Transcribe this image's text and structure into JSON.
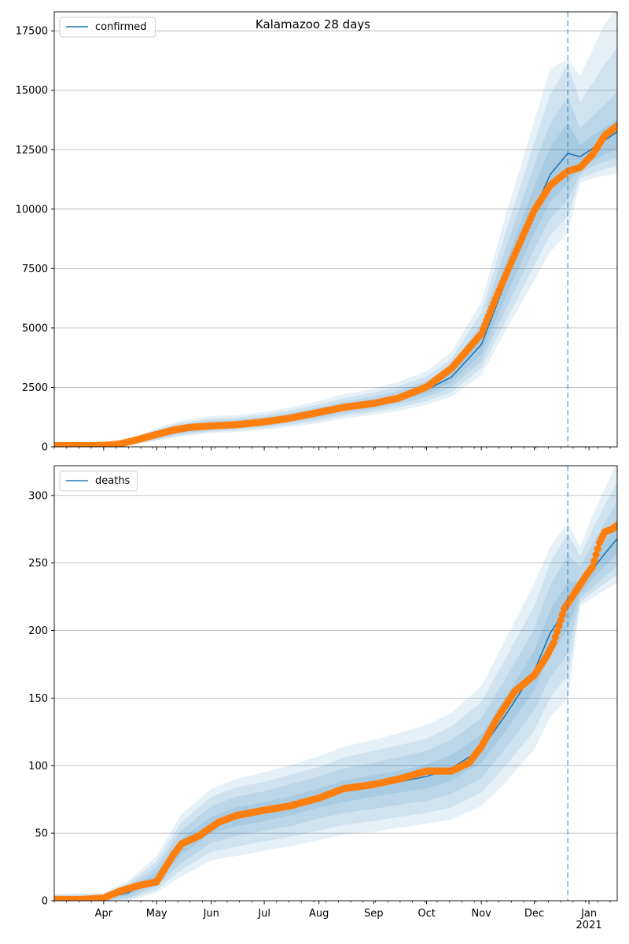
{
  "figure": {
    "title": "Kalamazoo 28 days"
  },
  "colors": {
    "model_line": "#1f77b4",
    "observed": "#ff7f0e",
    "band": "#1f77b4",
    "grid": "#b0b0b0",
    "cutoff": "#1f77b4"
  },
  "chart_data": [
    {
      "type": "line",
      "legend": "confirmed",
      "legend_position": "top-left",
      "grid": "y",
      "xaxis": {
        "type": "date",
        "range": [
          "2020-03-04",
          "2021-01-17"
        ],
        "ticks": [
          {
            "date": "2020-04-01",
            "label": "Apr"
          },
          {
            "date": "2020-05-01",
            "label": "May"
          },
          {
            "date": "2020-06-01",
            "label": "Jun"
          },
          {
            "date": "2020-07-01",
            "label": "Jul"
          },
          {
            "date": "2020-08-01",
            "label": "Aug"
          },
          {
            "date": "2020-09-01",
            "label": "Sep"
          },
          {
            "date": "2020-10-01",
            "label": "Oct"
          },
          {
            "date": "2020-11-01",
            "label": "Nov"
          },
          {
            "date": "2020-12-01",
            "label": "Dec"
          },
          {
            "date": "2021-01-01",
            "label": "Jan\n2021"
          }
        ],
        "show_labels": false
      },
      "ylim": [
        0,
        18300
      ],
      "yticks": [
        0,
        2500,
        5000,
        7500,
        10000,
        12500,
        15000,
        17500
      ],
      "cutoff_date": "2020-12-20",
      "model": {
        "x": [
          "2020-03-04",
          "2020-04-01",
          "2020-04-15",
          "2020-05-01",
          "2020-05-15",
          "2020-06-01",
          "2020-06-15",
          "2020-07-01",
          "2020-07-15",
          "2020-08-01",
          "2020-08-15",
          "2020-09-01",
          "2020-09-15",
          "2020-10-01",
          "2020-10-15",
          "2020-11-01",
          "2020-11-15",
          "2020-12-01",
          "2020-12-10",
          "2020-12-20",
          "2020-12-27",
          "2021-01-03",
          "2021-01-10",
          "2021-01-17"
        ],
        "mid": [
          50,
          60,
          150,
          480,
          720,
          880,
          940,
          1050,
          1200,
          1400,
          1630,
          1830,
          2050,
          2400,
          2930,
          4300,
          7000,
          9950,
          11450,
          12350,
          12200,
          12550,
          12900,
          13250
        ],
        "band_50": [
          [
            50,
            60
          ],
          [
            55,
            65
          ],
          [
            120,
            180
          ],
          [
            380,
            590
          ],
          [
            610,
            860
          ],
          [
            780,
            1000
          ],
          [
            840,
            1050
          ],
          [
            950,
            1160
          ],
          [
            1100,
            1300
          ],
          [
            1300,
            1530
          ],
          [
            1520,
            1760
          ],
          [
            1710,
            1970
          ],
          [
            1920,
            2200
          ],
          [
            2240,
            2580
          ],
          [
            2700,
            3190
          ],
          [
            3900,
            4750
          ],
          [
            6300,
            7750
          ],
          [
            9000,
            10950
          ],
          [
            10300,
            12600
          ],
          [
            11100,
            13650
          ],
          [
            11700,
            12700
          ],
          [
            12050,
            13100
          ],
          [
            12300,
            13450
          ],
          [
            12500,
            13800
          ]
        ],
        "band_80": [
          [
            45,
            65
          ],
          [
            50,
            70
          ],
          [
            100,
            210
          ],
          [
            330,
            660
          ],
          [
            550,
            940
          ],
          [
            700,
            1100
          ],
          [
            760,
            1140
          ],
          [
            870,
            1260
          ],
          [
            1010,
            1410
          ],
          [
            1200,
            1660
          ],
          [
            1400,
            1900
          ],
          [
            1590,
            2120
          ],
          [
            1790,
            2360
          ],
          [
            2090,
            2760
          ],
          [
            2500,
            3440
          ],
          [
            3600,
            5200
          ],
          [
            5800,
            8400
          ],
          [
            8300,
            11850
          ],
          [
            9600,
            13600
          ],
          [
            10400,
            14700
          ],
          [
            11500,
            13400
          ],
          [
            11800,
            13900
          ],
          [
            12000,
            14400
          ],
          [
            12150,
            14900
          ]
        ],
        "band_95": [
          [
            40,
            70
          ],
          [
            45,
            80
          ],
          [
            80,
            240
          ],
          [
            290,
            730
          ],
          [
            500,
            1020
          ],
          [
            640,
            1190
          ],
          [
            690,
            1230
          ],
          [
            790,
            1360
          ],
          [
            920,
            1520
          ],
          [
            1100,
            1790
          ],
          [
            1300,
            2050
          ],
          [
            1470,
            2280
          ],
          [
            1650,
            2540
          ],
          [
            1930,
            2960
          ],
          [
            2300,
            3700
          ],
          [
            3300,
            5650
          ],
          [
            5300,
            9100
          ],
          [
            7600,
            12800
          ],
          [
            8900,
            14800
          ],
          [
            9700,
            16100
          ],
          [
            11300,
            14500
          ],
          [
            11500,
            15300
          ],
          [
            11700,
            16100
          ],
          [
            11800,
            16800
          ]
        ],
        "band_99": [
          [
            35,
            80
          ],
          [
            40,
            90
          ],
          [
            60,
            270
          ],
          [
            250,
            800
          ],
          [
            440,
            1110
          ],
          [
            580,
            1290
          ],
          [
            620,
            1330
          ],
          [
            710,
            1470
          ],
          [
            830,
            1640
          ],
          [
            1000,
            1930
          ],
          [
            1190,
            2210
          ],
          [
            1350,
            2450
          ],
          [
            1510,
            2730
          ],
          [
            1770,
            3180
          ],
          [
            2100,
            3980
          ],
          [
            3000,
            6100
          ],
          [
            4900,
            9800
          ],
          [
            7000,
            13700
          ],
          [
            8200,
            15900
          ],
          [
            9000,
            16300
          ],
          [
            11100,
            15600
          ],
          [
            11300,
            16700
          ],
          [
            11400,
            17800
          ],
          [
            11500,
            18500
          ]
        ]
      },
      "observed": {
        "x": [
          "2020-03-04",
          "2020-03-20",
          "2020-04-01",
          "2020-04-10",
          "2020-04-20",
          "2020-05-01",
          "2020-05-10",
          "2020-05-20",
          "2020-06-01",
          "2020-06-15",
          "2020-07-01",
          "2020-07-15",
          "2020-08-01",
          "2020-08-15",
          "2020-09-01",
          "2020-09-15",
          "2020-10-01",
          "2020-10-15",
          "2020-11-01",
          "2020-11-10",
          "2020-11-20",
          "2020-12-01",
          "2020-12-10",
          "2020-12-20",
          "2020-12-27",
          "2021-01-03",
          "2021-01-10",
          "2021-01-17"
        ],
        "y": [
          50,
          50,
          60,
          120,
          300,
          520,
          700,
          820,
          880,
          930,
          1050,
          1200,
          1450,
          1660,
          1830,
          2050,
          2520,
          3300,
          4750,
          6400,
          8100,
          9950,
          11000,
          11600,
          11750,
          12300,
          13100,
          13500
        ]
      }
    },
    {
      "type": "line",
      "legend": "deaths",
      "legend_position": "top-left",
      "grid": "y",
      "xaxis": {
        "type": "date",
        "range": [
          "2020-03-04",
          "2021-01-17"
        ],
        "ticks": [
          {
            "date": "2020-04-01",
            "label": "Apr"
          },
          {
            "date": "2020-05-01",
            "label": "May"
          },
          {
            "date": "2020-06-01",
            "label": "Jun"
          },
          {
            "date": "2020-07-01",
            "label": "Jul"
          },
          {
            "date": "2020-08-01",
            "label": "Aug"
          },
          {
            "date": "2020-09-01",
            "label": "Sep"
          },
          {
            "date": "2020-10-01",
            "label": "Oct"
          },
          {
            "date": "2020-11-01",
            "label": "Nov"
          },
          {
            "date": "2020-12-01",
            "label": "Dec"
          },
          {
            "date": "2021-01-01",
            "label": "Jan\n2021"
          }
        ],
        "show_labels": true
      },
      "ylim": [
        0,
        322
      ],
      "yticks": [
        0,
        50,
        100,
        150,
        200,
        250,
        300
      ],
      "cutoff_date": "2020-12-20",
      "model": {
        "x": [
          "2020-03-04",
          "2020-04-01",
          "2020-04-15",
          "2020-05-01",
          "2020-05-15",
          "2020-06-01",
          "2020-06-15",
          "2020-07-01",
          "2020-07-15",
          "2020-08-01",
          "2020-08-15",
          "2020-09-01",
          "2020-09-15",
          "2020-10-01",
          "2020-10-15",
          "2020-11-01",
          "2020-11-15",
          "2020-12-01",
          "2020-12-10",
          "2020-12-20",
          "2020-12-27",
          "2021-01-03",
          "2021-01-10",
          "2021-01-17"
        ],
        "mid": [
          1,
          2,
          6,
          17,
          40,
          56,
          62,
          66,
          70,
          76,
          81,
          85,
          88,
          92,
          98,
          112,
          138,
          170,
          198,
          218,
          232,
          245,
          257,
          268
        ],
        "band_50": [
          [
            1,
            2
          ],
          [
            1,
            3
          ],
          [
            4,
            9
          ],
          [
            14,
            21
          ],
          [
            34,
            46
          ],
          [
            50,
            62
          ],
          [
            55,
            69
          ],
          [
            59,
            73
          ],
          [
            63,
            77
          ],
          [
            69,
            83
          ],
          [
            73,
            89
          ],
          [
            77,
            93
          ],
          [
            80,
            96
          ],
          [
            83,
            101
          ],
          [
            89,
            108
          ],
          [
            102,
            123
          ],
          [
            126,
            151
          ],
          [
            156,
            185
          ],
          [
            182,
            215
          ],
          [
            201,
            236
          ],
          [
            227,
            237
          ],
          [
            238,
            252
          ],
          [
            248,
            266
          ],
          [
            257,
            280
          ]
        ],
        "band_80": [
          [
            0,
            3
          ],
          [
            0,
            4
          ],
          [
            2,
            11
          ],
          [
            11,
            25
          ],
          [
            28,
            52
          ],
          [
            43,
            70
          ],
          [
            48,
            77
          ],
          [
            52,
            81
          ],
          [
            55,
            86
          ],
          [
            61,
            92
          ],
          [
            65,
            98
          ],
          [
            68,
            102
          ],
          [
            71,
            106
          ],
          [
            74,
            111
          ],
          [
            79,
            119
          ],
          [
            91,
            135
          ],
          [
            113,
            165
          ],
          [
            141,
            201
          ],
          [
            165,
            233
          ],
          [
            183,
            256
          ],
          [
            224,
            247
          ],
          [
            232,
            264
          ],
          [
            240,
            280
          ],
          [
            248,
            296
          ]
        ],
        "band_95": [
          [
            0,
            4
          ],
          [
            0,
            5
          ],
          [
            1,
            13
          ],
          [
            8,
            29
          ],
          [
            23,
            58
          ],
          [
            36,
            77
          ],
          [
            40,
            84
          ],
          [
            44,
            88
          ],
          [
            47,
            93
          ],
          [
            52,
            99
          ],
          [
            56,
            106
          ],
          [
            59,
            111
          ],
          [
            62,
            115
          ],
          [
            65,
            120
          ],
          [
            69,
            129
          ],
          [
            80,
            147
          ],
          [
            100,
            180
          ],
          [
            126,
            218
          ],
          [
            150,
            250
          ],
          [
            167,
            272
          ],
          [
            221,
            255
          ],
          [
            228,
            275
          ],
          [
            235,
            293
          ],
          [
            241,
            310
          ]
        ],
        "band_99": [
          [
            0,
            5
          ],
          [
            0,
            6
          ],
          [
            0,
            15
          ],
          [
            6,
            33
          ],
          [
            18,
            64
          ],
          [
            30,
            83
          ],
          [
            33,
            90
          ],
          [
            37,
            95
          ],
          [
            40,
            100
          ],
          [
            45,
            107
          ],
          [
            49,
            114
          ],
          [
            51,
            119
          ],
          [
            54,
            124
          ],
          [
            57,
            130
          ],
          [
            60,
            139
          ],
          [
            70,
            159
          ],
          [
            88,
            194
          ],
          [
            112,
            235
          ],
          [
            136,
            262
          ],
          [
            150,
            280
          ],
          [
            218,
            262
          ],
          [
            224,
            285
          ],
          [
            230,
            305
          ],
          [
            235,
            325
          ]
        ]
      },
      "observed": {
        "x": [
          "2020-03-04",
          "2020-03-20",
          "2020-04-01",
          "2020-04-10",
          "2020-04-20",
          "2020-05-01",
          "2020-05-10",
          "2020-05-15",
          "2020-05-25",
          "2020-06-05",
          "2020-06-15",
          "2020-07-01",
          "2020-07-15",
          "2020-08-01",
          "2020-08-15",
          "2020-09-01",
          "2020-09-15",
          "2020-10-01",
          "2020-10-15",
          "2020-10-25",
          "2020-11-01",
          "2020-11-10",
          "2020-11-20",
          "2020-12-01",
          "2020-12-08",
          "2020-12-12",
          "2020-12-18",
          "2020-12-24",
          "2020-12-30",
          "2021-01-03",
          "2021-01-07",
          "2021-01-10",
          "2021-01-14",
          "2021-01-17"
        ],
        "y": [
          1,
          1,
          2,
          7,
          11,
          14,
          33,
          42,
          48,
          58,
          63,
          67,
          70,
          76,
          83,
          86,
          90,
          96,
          96,
          102,
          114,
          135,
          155,
          167,
          181,
          191,
          216,
          228,
          240,
          247,
          265,
          273,
          275,
          278
        ]
      }
    }
  ]
}
